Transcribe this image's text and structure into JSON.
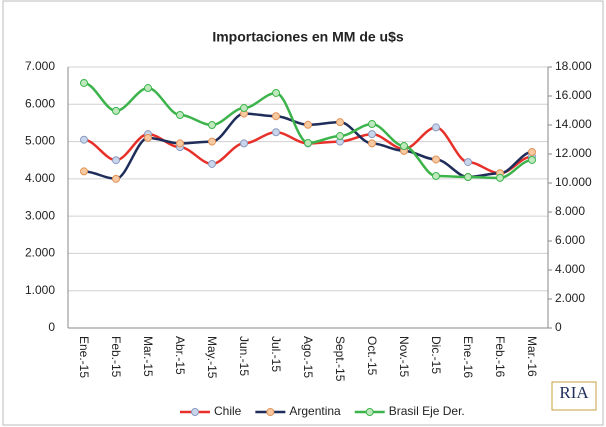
{
  "chart_data": {
    "type": "line",
    "title": "Importaciones en MM de u$s",
    "categories": [
      "Ene.-15",
      "Feb.-15",
      "Mar.-15",
      "Abr.-15",
      "May.-15",
      "Jun.-15",
      "Jul.-15",
      "Ago.-15",
      "Sept.-15",
      "Oct.-15",
      "Nov.-15",
      "Dic.-15",
      "Ene.-16",
      "Feb.-16",
      "Mar.-16"
    ],
    "series": [
      {
        "name": "Chile",
        "color": "#e8302a",
        "marker_color": "#c9d5ea",
        "marker_edge": "#8a9cc0",
        "values": [
          5050,
          4500,
          5200,
          4850,
          4400,
          4950,
          5250,
          4950,
          5000,
          5200,
          4800,
          5380,
          4450,
          4150,
          4600
        ]
      },
      {
        "name": "Argentina",
        "color": "#1f2d5a",
        "marker_color": "#f7c9a0",
        "marker_edge": "#e0935a",
        "values": [
          4200,
          4000,
          5100,
          4950,
          5000,
          5750,
          5680,
          5450,
          5520,
          4950,
          4750,
          4520,
          4050,
          4150,
          4720
        ]
      },
      {
        "name": "Brasil Eje Der.",
        "color": "#3cb44b",
        "marker_color": "#bfe8bf",
        "marker_edge": "#3cb44b",
        "axis": "y2",
        "values": [
          16900,
          14970,
          16550,
          14690,
          14000,
          15170,
          16210,
          12760,
          13240,
          14070,
          12550,
          10480,
          10410,
          10350,
          11590
        ]
      }
    ],
    "ylim": [
      0,
      7000
    ],
    "yticks": [
      0,
      {
        "value": 1000,
        "label": "1.000"
      },
      {
        "value": 2000,
        "label": "2.000"
      },
      {
        "value": 3000,
        "label": "3.000"
      },
      {
        "value": 4000,
        "label": "4.000"
      },
      {
        "value": 5000,
        "label": "5.000"
      },
      {
        "value": 6000,
        "label": "6.000"
      },
      {
        "value": 7000,
        "label": "7.000"
      }
    ],
    "y2lim": [
      0,
      18000
    ],
    "y2ticks": [
      0,
      {
        "value": 2000,
        "label": "2.000"
      },
      {
        "value": 4000,
        "label": "4.000"
      },
      {
        "value": 6000,
        "label": "6.000"
      },
      {
        "value": 8000,
        "label": "8.000"
      },
      {
        "value": 10000,
        "label": "10.000"
      },
      {
        "value": 12000,
        "label": "12.000"
      },
      {
        "value": 14000,
        "label": "14.000"
      },
      {
        "value": 16000,
        "label": "16.000"
      },
      {
        "value": 18000,
        "label": "18.000"
      }
    ],
    "grid": true,
    "legend": "bottom",
    "logo": "RIA"
  }
}
